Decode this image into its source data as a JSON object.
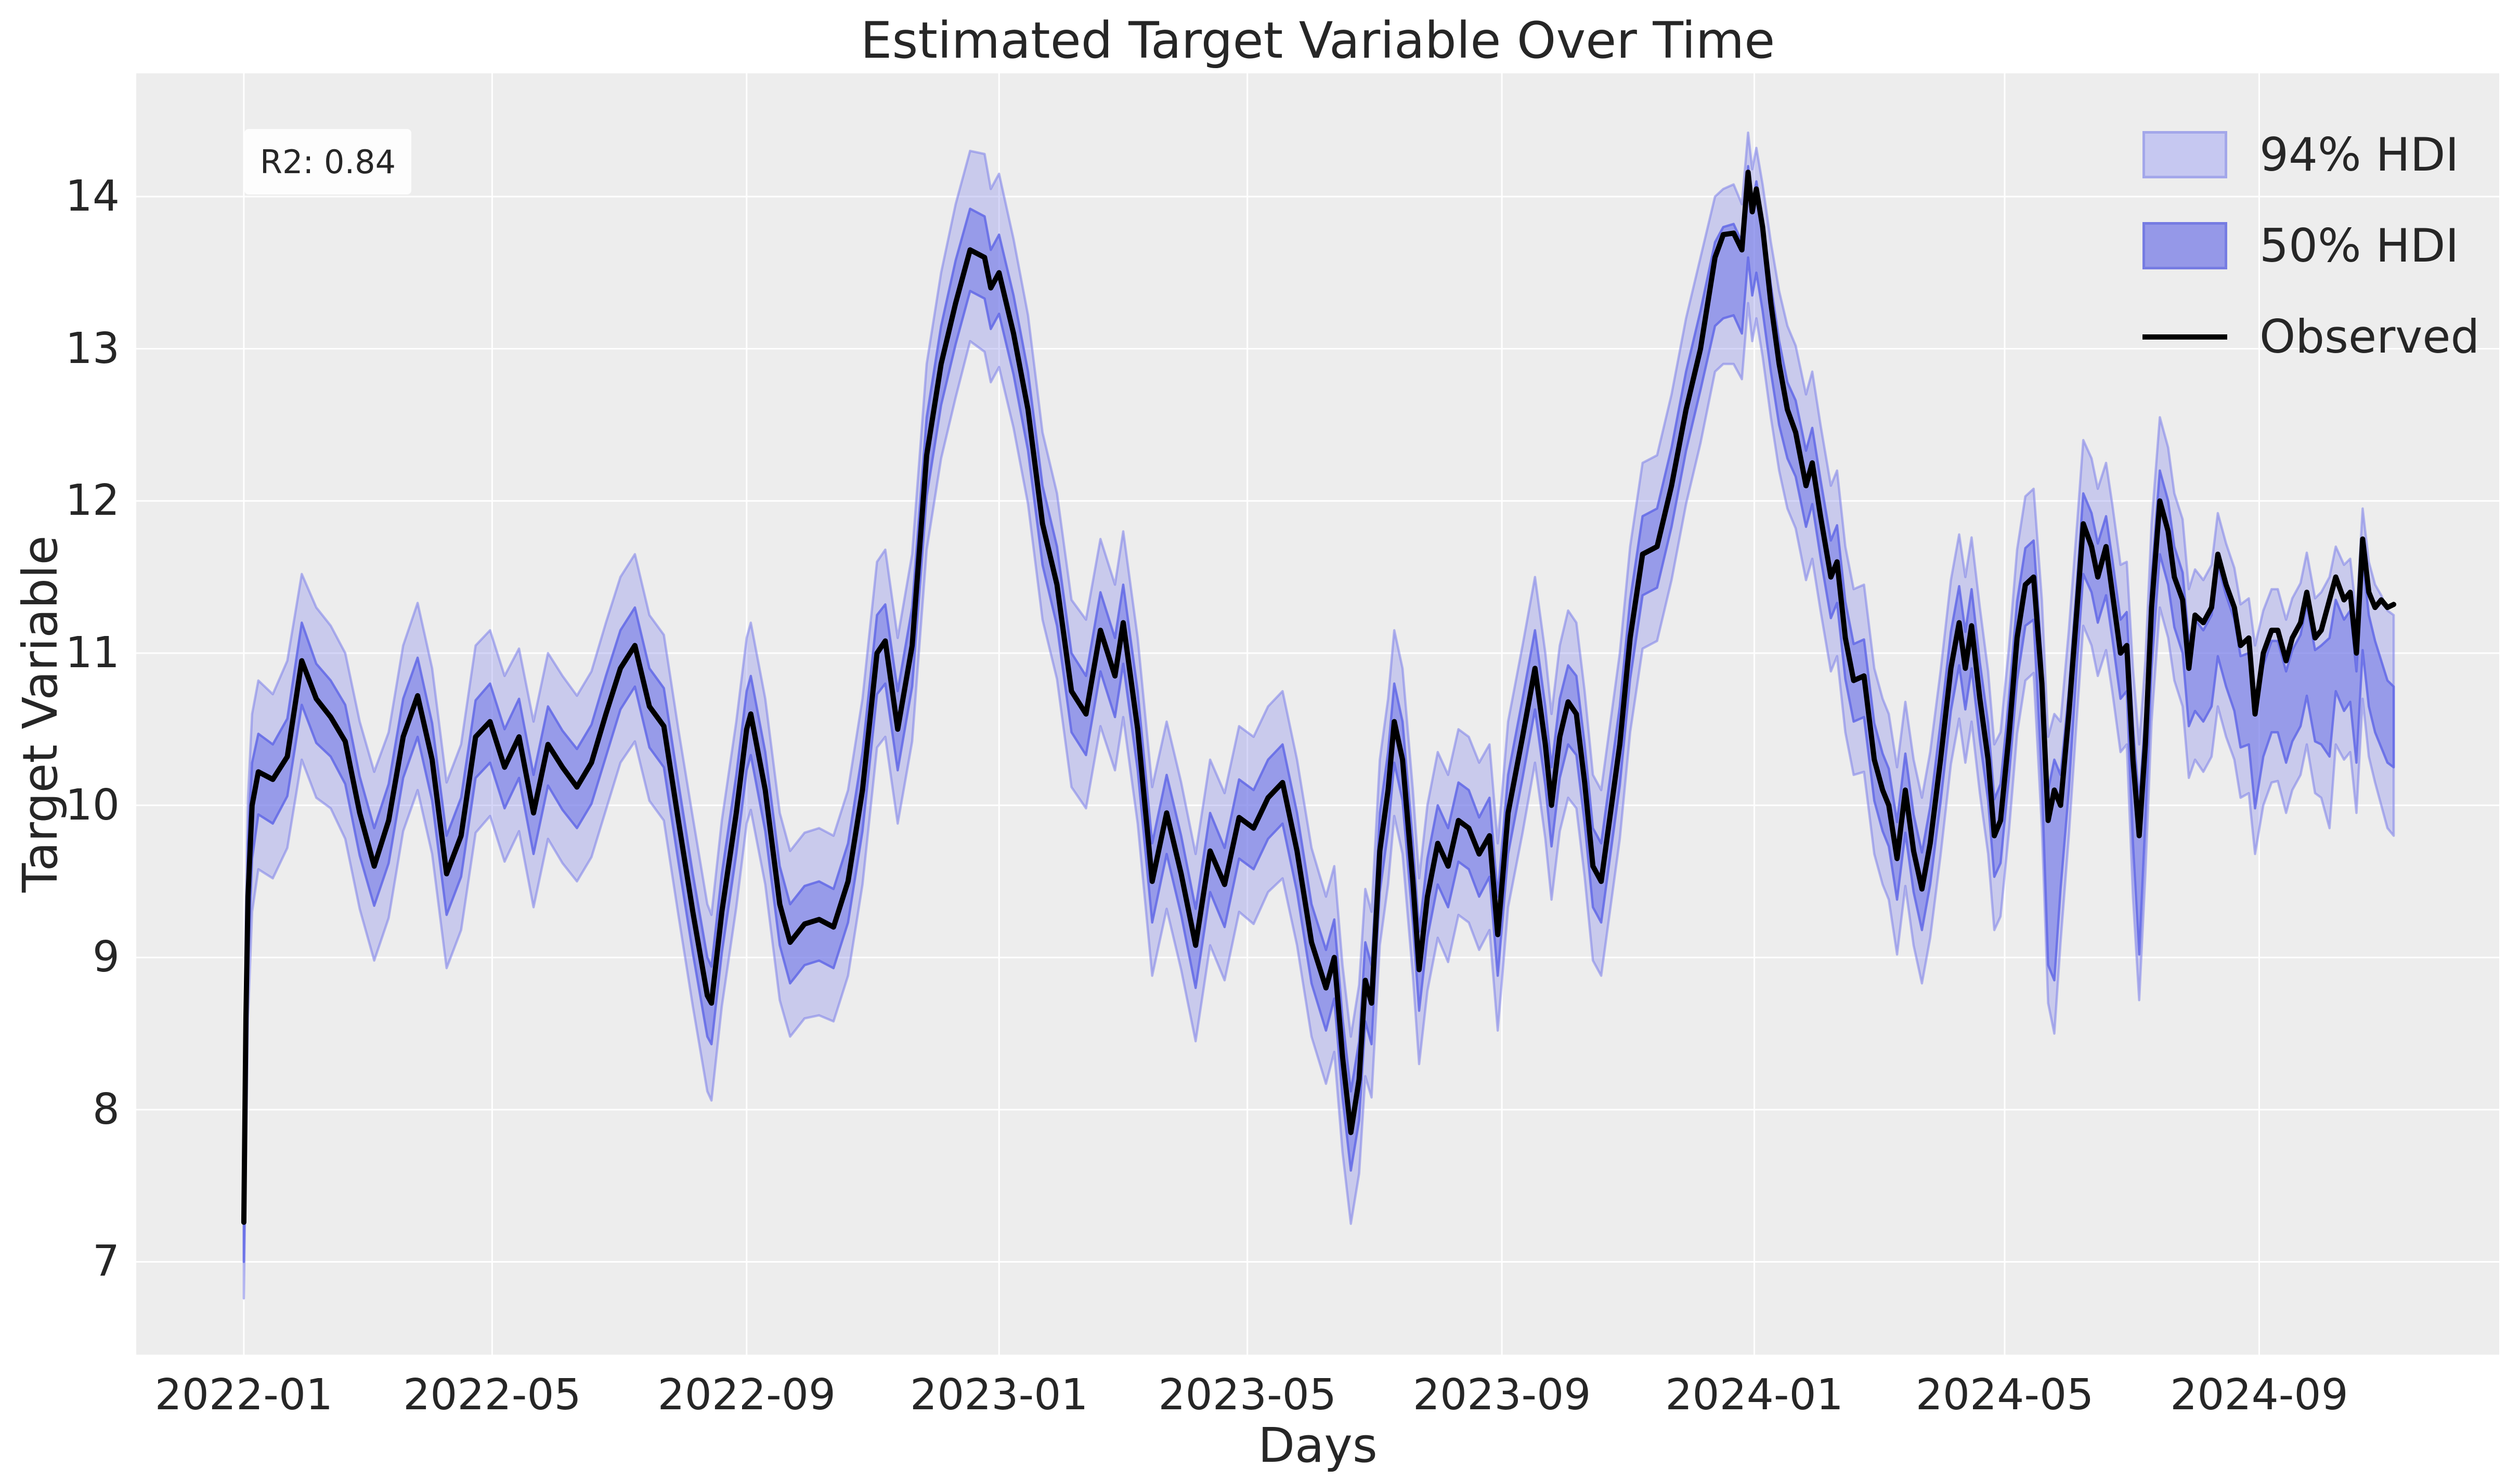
{
  "title": "Estimated Target Variable Over Time",
  "annotation": {
    "label": "R2: 0.84"
  },
  "legend": {
    "items": [
      {
        "label": "94% HDI",
        "swatch": "patch"
      },
      {
        "label": "50% HDI",
        "swatch": "patch"
      },
      {
        "label": "Observed",
        "swatch": "line"
      }
    ]
  },
  "colors": {
    "background": "#ffffff",
    "axes_background": "#ededed",
    "grid": "#ffffff",
    "text": "#262626",
    "observed_line": "#000000",
    "hdi94_fill": "rgba(123,128,233,0.32)",
    "hdi94_edge": "rgba(123,128,233,0.55)",
    "hdi50_fill": "rgba(110,116,232,0.55)",
    "hdi50_edge": "rgba(98,105,230,0.85)",
    "legend_94_fill": "#c6c8f1",
    "legend_94_edge": "#a3a7ea",
    "legend_50_fill": "#9598e8",
    "legend_50_edge": "#767ce2",
    "annotation_bg": "rgba(255,255,255,0.85)"
  },
  "chart_data": {
    "type": "line",
    "title": "Estimated Target Variable Over Time",
    "xlabel": "Days",
    "ylabel": "Target Variable",
    "grid": true,
    "legend_position": "upper right",
    "x_axis": {
      "start_date": "2022-01-01",
      "xlim_days": [
        -52,
        1090
      ],
      "tick_days": [
        0,
        120,
        243,
        365,
        485,
        608,
        730,
        851,
        974
      ],
      "tick_labels": [
        "2022-01",
        "2022-05",
        "2022-09",
        "2023-01",
        "2023-05",
        "2023-09",
        "2024-01",
        "2024-05",
        "2024-09"
      ]
    },
    "y_axis": {
      "ylim": [
        6.39,
        14.81
      ],
      "ticks": [
        7,
        8,
        9,
        10,
        11,
        12,
        13,
        14
      ]
    },
    "series_names": [
      "94% HDI",
      "50% HDI",
      "Observed"
    ],
    "x_days": [
      0,
      1,
      2,
      4,
      7,
      14,
      21,
      28,
      35,
      42,
      49,
      56,
      63,
      70,
      77,
      84,
      91,
      98,
      105,
      112,
      119,
      126,
      133,
      140,
      147,
      154,
      161,
      168,
      175,
      182,
      189,
      196,
      203,
      210,
      217,
      224,
      226,
      231,
      238,
      243,
      245,
      252,
      259,
      264,
      271,
      278,
      285,
      292,
      299,
      306,
      310,
      316,
      323,
      330,
      337,
      344,
      351,
      358,
      361,
      365,
      372,
      379,
      386,
      393,
      400,
      407,
      414,
      421,
      425,
      432,
      439,
      446,
      453,
      460,
      467,
      474,
      481,
      488,
      495,
      502,
      509,
      516,
      523,
      527,
      531,
      535,
      539,
      542,
      545,
      549,
      553,
      556,
      560,
      565,
      568,
      572,
      577,
      582,
      587,
      592,
      597,
      602,
      606,
      611,
      618,
      624,
      629,
      632,
      636,
      640,
      644,
      648,
      652,
      656,
      660,
      665,
      670,
      676,
      683,
      690,
      697,
      704,
      711,
      715,
      720,
      724,
      727,
      729,
      731,
      734,
      738,
      742,
      746,
      750,
      755,
      758,
      762,
      767,
      770,
      774,
      778,
      783,
      788,
      792,
      795,
      799,
      803,
      807,
      811,
      815,
      820,
      825,
      829,
      832,
      835,
      839,
      843,
      846,
      849,
      853,
      857,
      861,
      865,
      869,
      872,
      875,
      878,
      882,
      886,
      889,
      893,
      896,
      900,
      903,
      907,
      910,
      913,
      916,
      919,
      922,
      926,
      930,
      933,
      937,
      940,
      943,
      947,
      951,
      954,
      958,
      962,
      965,
      969,
      972,
      976,
      980,
      983,
      987,
      990,
      994,
      997,
      1001,
      1004,
      1008,
      1011,
      1015,
      1018,
      1021,
      1024,
      1027,
      1030,
      1033,
      1036,
      1039
    ],
    "observed": [
      7.26,
      8.6,
      9.4,
      10.0,
      10.22,
      10.17,
      10.32,
      10.95,
      10.7,
      10.58,
      10.42,
      9.95,
      9.6,
      9.9,
      10.45,
      10.72,
      10.3,
      9.55,
      9.8,
      10.45,
      10.55,
      10.25,
      10.45,
      9.95,
      10.4,
      10.25,
      10.12,
      10.28,
      10.6,
      10.9,
      11.05,
      10.65,
      10.52,
      9.9,
      9.3,
      8.75,
      8.7,
      9.3,
      9.95,
      10.5,
      10.6,
      10.1,
      9.35,
      9.1,
      9.22,
      9.25,
      9.2,
      9.5,
      10.1,
      11.0,
      11.08,
      10.5,
      11.05,
      12.3,
      12.9,
      13.3,
      13.65,
      13.6,
      13.4,
      13.5,
      13.1,
      12.6,
      11.85,
      11.45,
      10.75,
      10.6,
      11.15,
      10.85,
      11.2,
      10.5,
      9.5,
      9.95,
      9.55,
      9.08,
      9.7,
      9.48,
      9.92,
      9.85,
      10.05,
      10.15,
      9.7,
      9.1,
      8.8,
      9.0,
      8.35,
      7.85,
      8.2,
      8.85,
      8.7,
      9.7,
      10.1,
      10.55,
      10.3,
      9.5,
      8.92,
      9.4,
      9.75,
      9.6,
      9.9,
      9.85,
      9.68,
      9.8,
      9.15,
      9.95,
      10.45,
      10.9,
      10.4,
      10.0,
      10.45,
      10.68,
      10.6,
      10.15,
      9.6,
      9.5,
      9.9,
      10.4,
      11.1,
      11.65,
      11.7,
      12.1,
      12.6,
      13.0,
      13.6,
      13.75,
      13.76,
      13.65,
      14.16,
      13.9,
      14.05,
      13.8,
      13.3,
      12.9,
      12.6,
      12.45,
      12.1,
      12.25,
      11.9,
      11.5,
      11.6,
      11.1,
      10.82,
      10.85,
      10.3,
      10.1,
      10.0,
      9.65,
      10.1,
      9.7,
      9.45,
      9.75,
      10.3,
      10.9,
      11.2,
      10.9,
      11.18,
      10.7,
      10.3,
      9.8,
      9.9,
      10.45,
      11.1,
      11.45,
      11.5,
      10.8,
      9.9,
      10.1,
      10.0,
      10.6,
      11.3,
      11.85,
      11.7,
      11.5,
      11.7,
      11.4,
      11.0,
      11.05,
      10.3,
      9.8,
      10.4,
      11.3,
      12.0,
      11.8,
      11.5,
      11.35,
      10.9,
      11.25,
      11.2,
      11.3,
      11.65,
      11.45,
      11.3,
      11.05,
      11.1,
      10.6,
      11.0,
      11.15,
      11.15,
      10.95,
      11.1,
      11.2,
      11.4,
      11.1,
      11.15,
      11.35,
      11.5,
      11.35,
      11.4,
      11.0,
      11.75,
      11.4,
      11.3,
      11.35,
      11.3,
      11.32
    ],
    "hdi94_lower": [
      6.76,
      7.7,
      8.6,
      9.3,
      9.58,
      9.52,
      9.72,
      10.3,
      10.05,
      9.98,
      9.78,
      9.32,
      8.98,
      9.26,
      9.83,
      10.1,
      9.68,
      8.93,
      9.18,
      9.82,
      9.93,
      9.63,
      9.83,
      9.33,
      9.78,
      9.62,
      9.5,
      9.66,
      9.97,
      10.28,
      10.42,
      10.03,
      9.9,
      9.28,
      8.68,
      8.12,
      8.06,
      8.68,
      9.33,
      9.88,
      9.97,
      9.48,
      8.72,
      8.48,
      8.6,
      8.62,
      8.58,
      8.88,
      9.48,
      10.38,
      10.45,
      9.88,
      10.42,
      11.68,
      12.28,
      12.68,
      13.05,
      12.98,
      12.78,
      12.88,
      12.48,
      11.98,
      11.22,
      10.83,
      10.12,
      9.98,
      10.52,
      10.23,
      10.58,
      9.88,
      8.88,
      9.32,
      8.92,
      8.45,
      9.08,
      8.85,
      9.3,
      9.22,
      9.43,
      9.52,
      9.08,
      8.48,
      8.17,
      8.38,
      7.72,
      7.25,
      7.58,
      8.22,
      8.08,
      9.08,
      9.48,
      9.93,
      9.68,
      8.88,
      8.3,
      8.78,
      9.13,
      8.97,
      9.28,
      9.23,
      9.05,
      9.18,
      8.52,
      9.33,
      9.82,
      10.28,
      9.78,
      9.38,
      9.83,
      10.05,
      9.98,
      9.53,
      8.98,
      8.88,
      9.28,
      9.78,
      10.48,
      11.03,
      11.08,
      11.48,
      11.98,
      12.38,
      12.85,
      12.9,
      12.9,
      12.8,
      13.3,
      13.05,
      13.2,
      12.95,
      12.55,
      12.2,
      11.95,
      11.82,
      11.48,
      11.62,
      11.28,
      10.88,
      10.98,
      10.48,
      10.2,
      10.22,
      9.68,
      9.48,
      9.38,
      9.02,
      9.47,
      9.08,
      8.83,
      9.13,
      9.67,
      10.27,
      10.57,
      10.28,
      10.55,
      10.08,
      9.68,
      9.18,
      9.27,
      9.82,
      10.47,
      10.82,
      10.87,
      9.85,
      8.7,
      8.5,
      9.1,
      9.8,
      10.6,
      11.18,
      11.05,
      10.85,
      11.02,
      10.75,
      10.35,
      10.4,
      9.4,
      8.72,
      9.55,
      10.55,
      11.3,
      11.1,
      10.82,
      10.65,
      10.18,
      10.3,
      10.22,
      10.32,
      10.65,
      10.45,
      10.3,
      10.05,
      10.08,
      9.68,
      10.0,
      10.15,
      10.16,
      9.95,
      10.1,
      10.2,
      10.4,
      10.08,
      10.05,
      9.85,
      10.4,
      10.3,
      10.35,
      9.95,
      10.7,
      10.32,
      10.15,
      10.0,
      9.85,
      9.8
    ],
    "hdi94_upper": [
      8.05,
      9.3,
      10.05,
      10.6,
      10.82,
      10.73,
      10.95,
      11.52,
      11.3,
      11.18,
      11.0,
      10.55,
      10.22,
      10.48,
      11.05,
      11.33,
      10.9,
      10.15,
      10.4,
      11.05,
      11.15,
      10.85,
      11.03,
      10.55,
      11.0,
      10.85,
      10.72,
      10.88,
      11.2,
      11.5,
      11.65,
      11.25,
      11.12,
      10.5,
      9.92,
      9.35,
      9.28,
      9.9,
      10.55,
      11.1,
      11.2,
      10.7,
      9.95,
      9.7,
      9.82,
      9.85,
      9.8,
      10.1,
      10.7,
      11.6,
      11.68,
      11.1,
      11.65,
      12.9,
      13.5,
      13.95,
      14.3,
      14.28,
      14.05,
      14.15,
      13.72,
      13.22,
      12.45,
      12.05,
      11.35,
      11.22,
      11.75,
      11.45,
      11.8,
      11.1,
      10.12,
      10.55,
      10.15,
      9.68,
      10.3,
      10.08,
      10.52,
      10.45,
      10.65,
      10.75,
      10.3,
      9.72,
      9.4,
      9.6,
      8.95,
      8.48,
      8.82,
      9.45,
      9.3,
      10.3,
      10.7,
      11.15,
      10.9,
      10.1,
      9.52,
      10.0,
      10.35,
      10.2,
      10.5,
      10.45,
      10.28,
      10.4,
      9.75,
      10.55,
      11.05,
      11.5,
      11.0,
      10.6,
      11.05,
      11.28,
      11.2,
      10.75,
      10.2,
      10.1,
      10.5,
      11.0,
      11.7,
      12.25,
      12.3,
      12.7,
      13.2,
      13.6,
      14.0,
      14.05,
      14.08,
      13.95,
      14.42,
      14.18,
      14.32,
      14.08,
      13.7,
      13.38,
      13.15,
      13.02,
      12.7,
      12.85,
      12.5,
      12.1,
      12.2,
      11.7,
      11.42,
      11.45,
      10.9,
      10.7,
      10.6,
      10.25,
      10.68,
      10.3,
      10.05,
      10.35,
      10.88,
      11.48,
      11.78,
      11.5,
      11.76,
      11.3,
      10.88,
      10.4,
      10.48,
      11.03,
      11.68,
      12.03,
      12.08,
      11.35,
      10.45,
      10.6,
      10.55,
      11.15,
      11.85,
      12.4,
      12.28,
      12.08,
      12.25,
      11.98,
      11.58,
      11.6,
      10.9,
      10.4,
      10.95,
      11.85,
      12.55,
      12.35,
      12.05,
      11.88,
      11.42,
      11.55,
      11.48,
      11.58,
      11.92,
      11.72,
      11.56,
      11.32,
      11.36,
      11.05,
      11.28,
      11.42,
      11.42,
      11.22,
      11.36,
      11.46,
      11.66,
      11.36,
      11.4,
      11.5,
      11.7,
      11.58,
      11.62,
      11.25,
      11.95,
      11.6,
      11.45,
      11.38,
      11.28,
      11.25
    ],
    "hdi50_lower": [
      7.0,
      8.1,
      8.95,
      9.65,
      9.94,
      9.88,
      10.06,
      10.66,
      10.41,
      10.32,
      10.14,
      9.67,
      9.34,
      9.62,
      10.18,
      10.45,
      10.03,
      9.28,
      9.53,
      10.18,
      10.28,
      9.98,
      10.18,
      9.68,
      10.13,
      9.97,
      9.85,
      10.01,
      10.32,
      10.63,
      10.78,
      10.38,
      10.25,
      9.63,
      9.03,
      8.48,
      8.43,
      9.03,
      9.68,
      10.23,
      10.33,
      9.83,
      9.08,
      8.83,
      8.95,
      8.98,
      8.93,
      9.23,
      9.83,
      10.73,
      10.8,
      10.23,
      10.78,
      12.03,
      12.63,
      13.03,
      13.38,
      13.33,
      13.13,
      13.23,
      12.83,
      12.33,
      11.58,
      11.18,
      10.48,
      10.33,
      10.88,
      10.58,
      10.93,
      10.23,
      9.23,
      9.68,
      9.28,
      8.8,
      9.43,
      9.2,
      9.65,
      9.58,
      9.78,
      9.88,
      9.43,
      8.83,
      8.52,
      8.73,
      8.08,
      7.6,
      7.93,
      8.58,
      8.43,
      9.43,
      9.83,
      10.28,
      10.03,
      9.23,
      8.65,
      9.13,
      9.48,
      9.33,
      9.63,
      9.58,
      9.4,
      9.53,
      8.88,
      9.68,
      10.18,
      10.63,
      10.13,
      9.73,
      10.18,
      10.4,
      10.33,
      9.88,
      9.33,
      9.23,
      9.63,
      10.13,
      10.83,
      11.38,
      11.43,
      11.83,
      12.33,
      12.73,
      13.15,
      13.2,
      13.22,
      13.1,
      13.6,
      13.35,
      13.5,
      13.25,
      12.85,
      12.5,
      12.28,
      12.16,
      11.83,
      11.98,
      11.63,
      11.23,
      11.33,
      10.83,
      10.55,
      10.58,
      10.03,
      9.83,
      9.73,
      9.38,
      9.82,
      9.43,
      9.18,
      9.48,
      10.02,
      10.62,
      10.92,
      10.63,
      10.9,
      10.43,
      10.03,
      9.53,
      9.62,
      10.18,
      10.82,
      11.18,
      11.22,
      10.15,
      8.95,
      8.85,
      9.45,
      10.1,
      10.95,
      11.52,
      11.4,
      11.2,
      11.38,
      11.1,
      10.7,
      10.75,
      9.75,
      9.02,
      9.9,
      10.9,
      11.65,
      11.45,
      11.17,
      11.0,
      10.52,
      10.62,
      10.55,
      10.65,
      10.98,
      10.78,
      10.62,
      10.38,
      10.4,
      9.98,
      10.32,
      10.48,
      10.48,
      10.28,
      10.42,
      10.52,
      10.72,
      10.42,
      10.4,
      10.32,
      10.75,
      10.62,
      10.68,
      10.28,
      11.02,
      10.65,
      10.48,
      10.38,
      10.28,
      10.25
    ],
    "hdi50_upper": [
      7.8,
      8.95,
      9.75,
      10.28,
      10.47,
      10.4,
      10.57,
      11.2,
      10.93,
      10.82,
      10.66,
      10.19,
      9.85,
      10.14,
      10.7,
      10.97,
      10.54,
      9.8,
      10.05,
      10.69,
      10.8,
      10.5,
      10.7,
      10.2,
      10.65,
      10.49,
      10.37,
      10.53,
      10.85,
      11.15,
      11.3,
      10.9,
      10.77,
      10.15,
      9.55,
      9.0,
      8.94,
      9.55,
      10.2,
      10.75,
      10.85,
      10.35,
      9.6,
      9.35,
      9.47,
      9.5,
      9.45,
      9.75,
      10.35,
      11.25,
      11.32,
      10.75,
      11.3,
      12.55,
      13.15,
      13.58,
      13.92,
      13.87,
      13.65,
      13.75,
      13.35,
      12.85,
      12.1,
      11.7,
      11.0,
      10.85,
      11.4,
      11.1,
      11.45,
      10.75,
      9.75,
      10.2,
      9.8,
      9.32,
      9.95,
      9.72,
      10.17,
      10.1,
      10.3,
      10.4,
      9.95,
      9.35,
      9.05,
      9.25,
      8.6,
      8.12,
      8.45,
      9.1,
      8.95,
      9.95,
      10.35,
      10.8,
      10.55,
      9.75,
      9.17,
      9.65,
      10.0,
      9.85,
      10.15,
      10.1,
      9.92,
      10.05,
      9.4,
      10.2,
      10.7,
      11.15,
      10.65,
      10.25,
      10.7,
      10.92,
      10.85,
      10.4,
      9.85,
      9.75,
      10.15,
      10.65,
      11.35,
      11.9,
      11.95,
      12.35,
      12.85,
      13.25,
      13.7,
      13.8,
      13.82,
      13.7,
      14.2,
      13.95,
      14.1,
      13.85,
      13.42,
      13.05,
      12.78,
      12.66,
      12.33,
      12.48,
      12.14,
      11.74,
      11.84,
      11.34,
      11.06,
      11.09,
      10.54,
      10.34,
      10.24,
      9.89,
      10.34,
      9.94,
      9.69,
      9.99,
      10.54,
      11.14,
      11.44,
      11.14,
      11.42,
      10.94,
      10.54,
      10.04,
      10.14,
      10.69,
      11.34,
      11.69,
      11.74,
      10.95,
      10.1,
      10.3,
      10.2,
      10.75,
      11.48,
      12.05,
      11.92,
      11.72,
      11.9,
      11.62,
      11.22,
      11.27,
      10.52,
      10.02,
      10.6,
      11.5,
      12.2,
      12.0,
      11.7,
      11.53,
      11.08,
      11.22,
      11.15,
      11.25,
      11.58,
      11.38,
      11.22,
      10.98,
      11.0,
      10.6,
      10.92,
      11.08,
      11.08,
      10.88,
      11.02,
      11.12,
      11.32,
      11.02,
      11.05,
      11.1,
      11.35,
      11.22,
      11.28,
      10.88,
      11.62,
      11.25,
      11.08,
      10.95,
      10.82,
      10.78
    ]
  }
}
